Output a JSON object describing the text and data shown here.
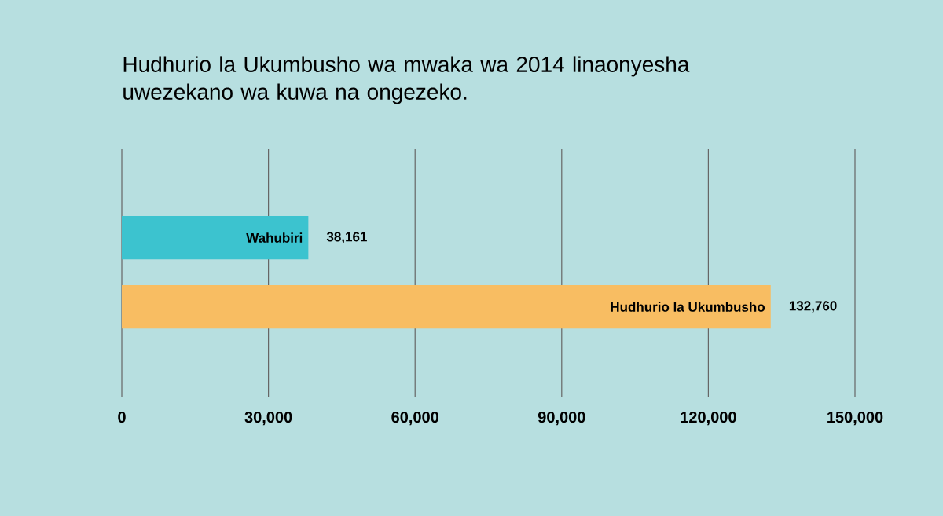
{
  "chart_data": {
    "type": "bar",
    "orientation": "horizontal",
    "title": "Hudhurio la Ukumbusho wa mwaka wa 2014 linaonyesha uwezekano wa kuwa na ongezeko.",
    "categories": [
      "Wahubiri",
      "Hudhurio la Ukumbusho"
    ],
    "values": [
      38161,
      132760
    ],
    "value_labels": [
      "38,161",
      "132,760"
    ],
    "colors": [
      "#3cc3cf",
      "#f8bd62"
    ],
    "xlim": [
      0,
      150000
    ],
    "xticks": [
      0,
      {
        "value": 30000,
        "label": "30,000"
      },
      {
        "value": 60000,
        "label": "60,000"
      },
      {
        "value": 90000,
        "label": "90,000"
      },
      {
        "value": 120000,
        "label": "120,000"
      },
      {
        "value": 150000,
        "label": "150,000"
      }
    ],
    "grid": "x"
  }
}
